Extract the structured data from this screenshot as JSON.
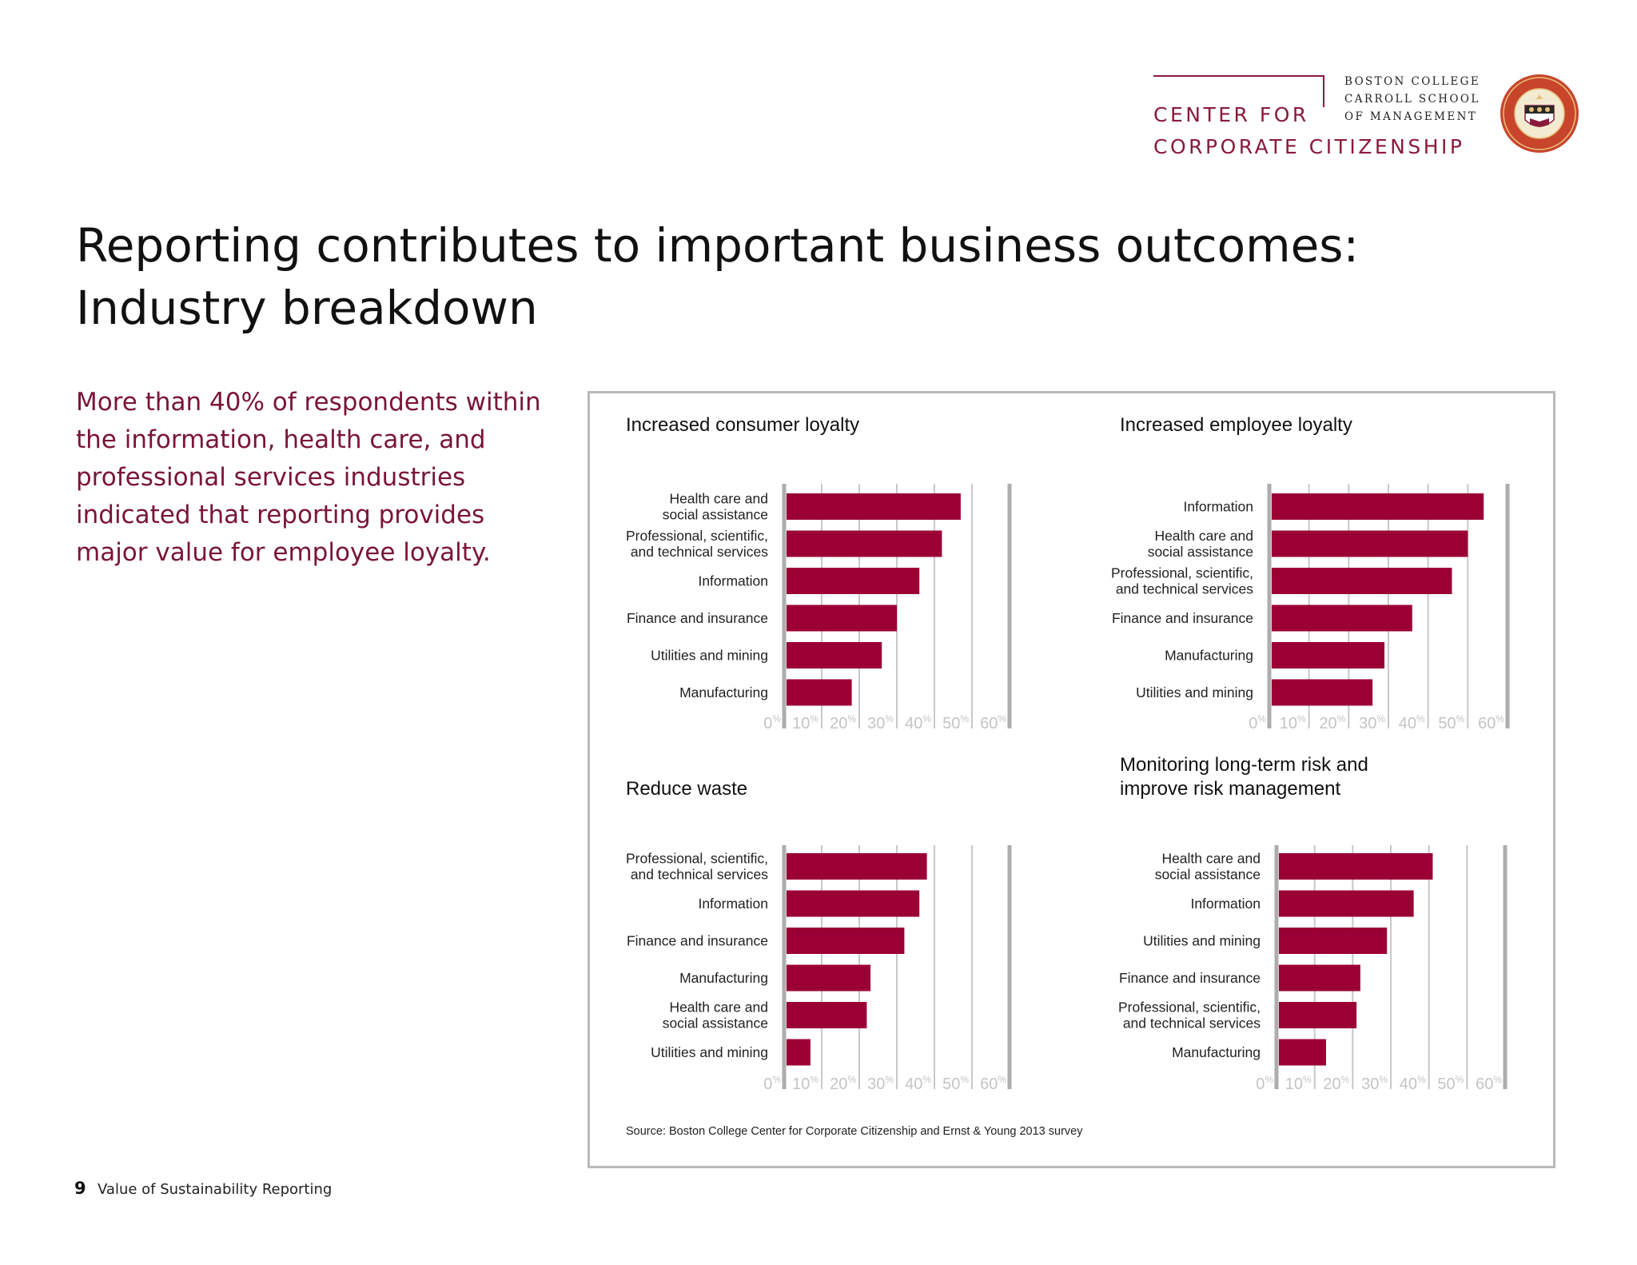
{
  "header": {
    "center_line1": "CENTER FOR",
    "center_line2": "CORPORATE CITIZENSHIP",
    "bc_line1": "BOSTON COLLEGE",
    "bc_line2": "CARROLL SCHOOL",
    "bc_line3": "OF MANAGEMENT",
    "seal_icon": "boston-college-seal",
    "brand_color": "#8a1a3a"
  },
  "page_title_line1": "Reporting contributes to important business outcomes:",
  "page_title_line2": "Industry breakdown",
  "lead_text": "More than 40% of respondents within the information, health care, and professional services industries indicated that reporting provides major value for employee loyalty.",
  "source": "Source: Boston College Center for Corporate Citizenship and Ernst & Young 2013 survey",
  "footer": {
    "page_number": "9",
    "doc_title": "Value of Sustainability Reporting"
  },
  "chart_data": [
    {
      "type": "bar",
      "orientation": "horizontal",
      "title": "Increased consumer loyalty",
      "categories": [
        "Health care and\nsocial assistance",
        "Professional, scientific,\nand technical services",
        "Information",
        "Finance and insurance",
        "Utilities and mining",
        "Manufacturing"
      ],
      "values": [
        47,
        42,
        36,
        30,
        26,
        18
      ],
      "xlim": [
        0,
        60
      ],
      "ticks": [
        "0",
        "10",
        "20",
        "30",
        "40",
        "50",
        "60"
      ],
      "tick_suffix": "%",
      "bar_color": "#9b0034"
    },
    {
      "type": "bar",
      "orientation": "horizontal",
      "title": "Increased employee loyalty",
      "categories": [
        "Information",
        "Health care and\nsocial assistance",
        "Professional, scientific,\nand technical services",
        "Finance and insurance",
        "Manufacturing",
        "Utilities and mining"
      ],
      "values": [
        54,
        50,
        46,
        36,
        29,
        26
      ],
      "xlim": [
        0,
        60
      ],
      "ticks": [
        "0",
        "10",
        "20",
        "30",
        "40",
        "50",
        "60"
      ],
      "tick_suffix": "%",
      "bar_color": "#9b0034"
    },
    {
      "type": "bar",
      "orientation": "horizontal",
      "title": "Reduce waste",
      "categories": [
        "Professional, scientific,\nand technical services",
        "Information",
        "Finance and insurance",
        "Manufacturing",
        "Health care and\nsocial assistance",
        "Utilities and mining"
      ],
      "values": [
        38,
        36,
        32,
        23,
        22,
        7
      ],
      "xlim": [
        0,
        60
      ],
      "ticks": [
        "0",
        "10",
        "20",
        "30",
        "40",
        "50",
        "60"
      ],
      "tick_suffix": "%",
      "bar_color": "#9b0034"
    },
    {
      "type": "bar",
      "orientation": "horizontal",
      "title": "Monitoring long-term risk and\nimprove risk management",
      "categories": [
        "Health care and\nsocial assistance",
        "Information",
        "Utilities and mining",
        "Finance and insurance",
        "Professional, scientific,\nand technical services",
        "Manufacturing"
      ],
      "values": [
        41,
        36,
        29,
        22,
        21,
        13
      ],
      "xlim": [
        0,
        60
      ],
      "ticks": [
        "0",
        "10",
        "20",
        "30",
        "40",
        "50",
        "60"
      ],
      "tick_suffix": "%",
      "bar_color": "#9b0034"
    }
  ]
}
